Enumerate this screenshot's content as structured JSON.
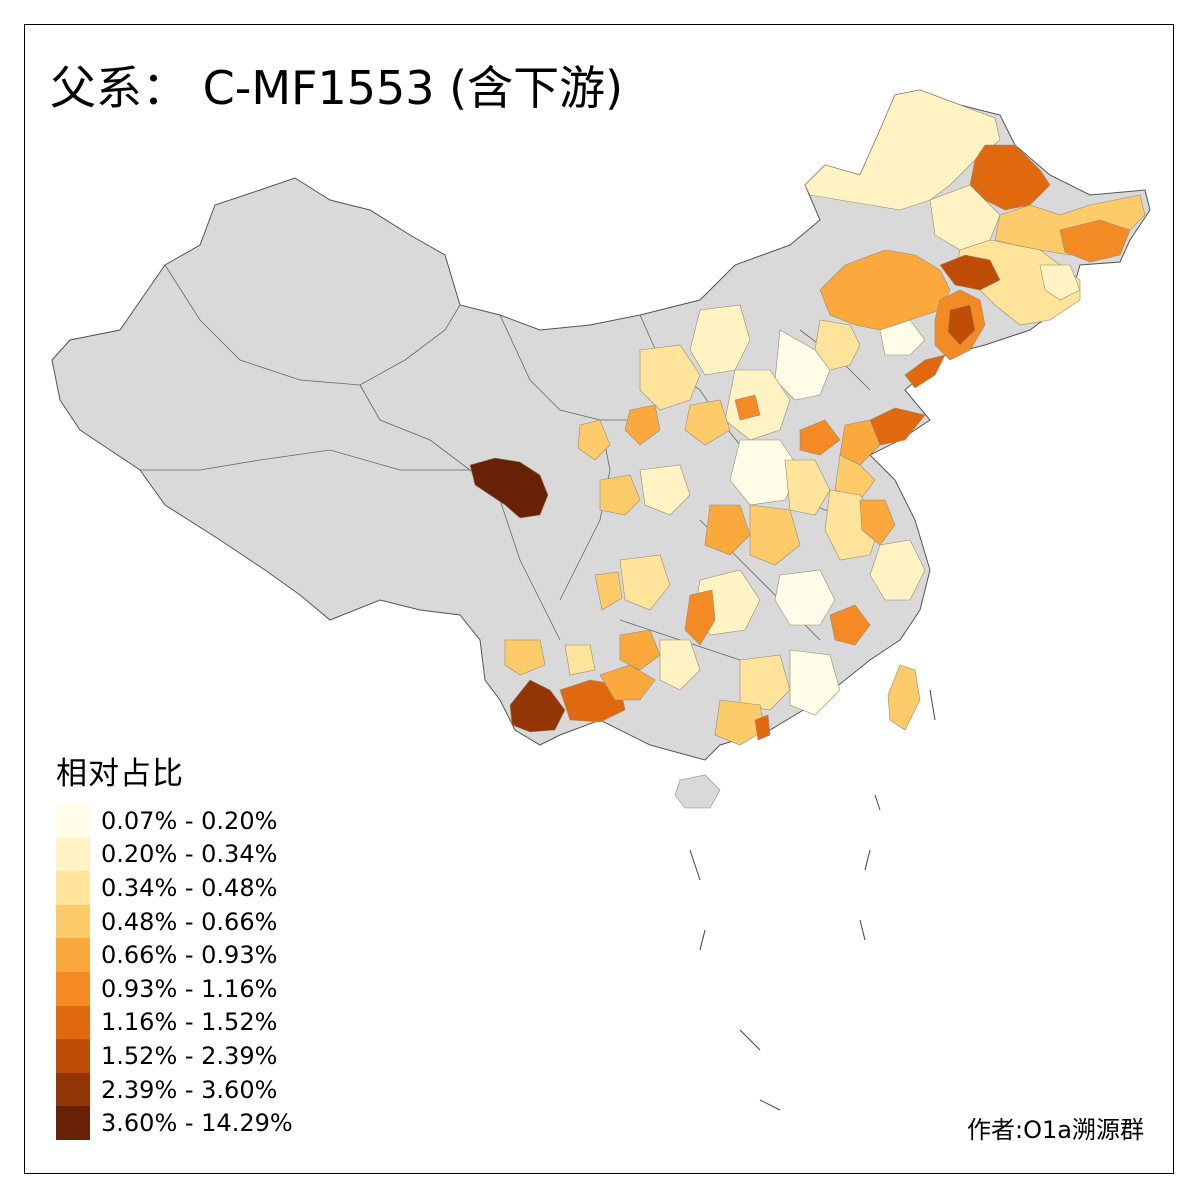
{
  "title": "父系： C-MF1553 (含下游)",
  "legend": {
    "title": "相对占比",
    "items": [
      {
        "label": "0.07% - 0.20%",
        "color": "#FFFDE7"
      },
      {
        "label": "0.20% - 0.34%",
        "color": "#FFF3C4"
      },
      {
        "label": "0.34% - 0.48%",
        "color": "#FEE39A"
      },
      {
        "label": "0.48% - 0.66%",
        "color": "#FDCB6A"
      },
      {
        "label": "0.66% - 0.93%",
        "color": "#FBA93D"
      },
      {
        "label": "0.93% - 1.16%",
        "color": "#F48A24"
      },
      {
        "label": "1.16% - 1.52%",
        "color": "#E06910"
      },
      {
        "label": "1.52% - 2.39%",
        "color": "#BF4D06"
      },
      {
        "label": "2.39% - 3.60%",
        "color": "#933504"
      },
      {
        "label": "3.60% - 14.29%",
        "color": "#662106"
      }
    ]
  },
  "author": "作者:O1a溯源群",
  "colors": {
    "no_data": "#D9D9D9",
    "border": "#555555"
  }
}
